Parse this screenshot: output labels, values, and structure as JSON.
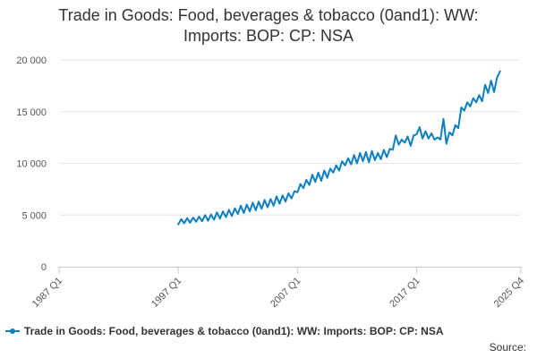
{
  "chart_data": {
    "type": "line",
    "title_lines": [
      "Trade in Goods: Food, beverages & tobacco (0and1): WW:",
      "Imports: BOP: CP: NSA"
    ],
    "xlabel": "",
    "ylabel": "",
    "x_start": "1987 Q1",
    "x_end": "2025 Q4",
    "ylim": [
      0,
      20000
    ],
    "y_ticks": [
      0,
      5000,
      10000,
      15000,
      20000
    ],
    "y_tick_labels": [
      "0",
      "5 000",
      "10 000",
      "15 000",
      "20 000"
    ],
    "x_tick_labels": [
      "1987 Q1",
      "1997 Q1",
      "2007 Q1",
      "2017 Q1",
      "2025 Q4"
    ],
    "x_tick_positions": [
      0,
      40,
      80,
      120,
      155
    ],
    "grid": true,
    "series": [
      {
        "name": "Trade in Goods: Food, beverages & tobacco (0and1): WW: Imports: BOP: CP: NSA",
        "color": "#0b7fc0",
        "start": "1997 Q1",
        "values": [
          4100,
          4600,
          4200,
          4700,
          4250,
          4750,
          4350,
          4850,
          4400,
          5000,
          4450,
          5050,
          4550,
          5250,
          4650,
          5350,
          4800,
          5500,
          4900,
          5650,
          5100,
          5900,
          5200,
          6000,
          5350,
          6200,
          5450,
          6300,
          5600,
          6450,
          5750,
          6550,
          5900,
          6800,
          6100,
          6900,
          6300,
          7100,
          6600,
          7300,
          7200,
          8000,
          7600,
          8400,
          7900,
          8900,
          8200,
          9100,
          8300,
          9300,
          8600,
          9500,
          9100,
          9800,
          9300,
          10200,
          9800,
          10500,
          9900,
          10800,
          10000,
          11000,
          10200,
          11100,
          10100,
          11200,
          10300,
          11000,
          10400,
          11300,
          10600,
          11400,
          11300,
          12700,
          11800,
          12300,
          12000,
          12600,
          11700,
          12700,
          12800,
          13500,
          12400,
          13100,
          12400,
          12900,
          12300,
          12500,
          12300,
          14300,
          11900,
          13000,
          12700,
          13700,
          13400,
          15400,
          15100,
          15900,
          15500,
          16300,
          15900,
          16600,
          16000,
          17600,
          16800,
          18000,
          16900,
          18300,
          18900
        ]
      }
    ]
  },
  "legend": {
    "label": "Trade in Goods: Food, beverages & tobacco (0and1): WW: Imports: BOP: CP: NSA"
  },
  "source": {
    "label": "Source:"
  }
}
